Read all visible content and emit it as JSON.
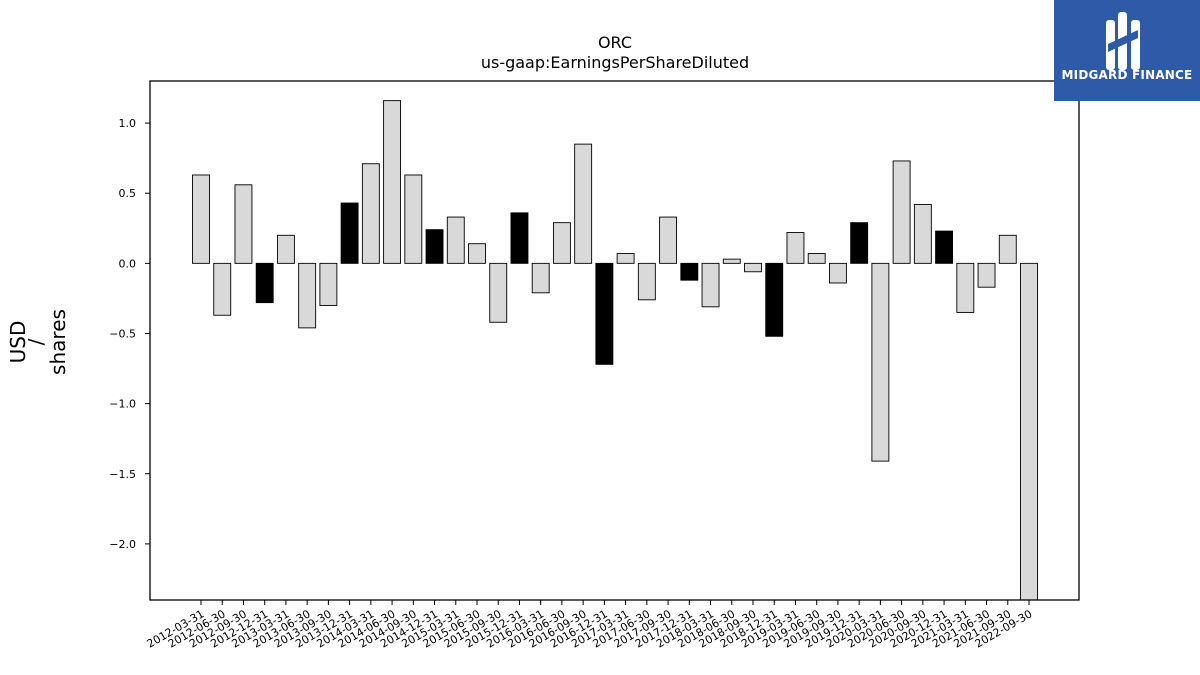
{
  "chart_data": {
    "type": "bar",
    "title": "ORC",
    "subtitle": "us-gaap:EarningsPerShareDiluted",
    "ylabel_lines": [
      "USD",
      "/",
      "shares"
    ],
    "ylim": [
      -2.4,
      1.3
    ],
    "yticks": [
      1.0,
      0.5,
      0.0,
      -0.5,
      -1.0,
      -1.5,
      -2.0
    ],
    "ytick_labels": [
      "1.0",
      "0.5",
      "0.0",
      "−0.5",
      "−1.0",
      "−1.5",
      "−2.0"
    ],
    "categories": [
      "2012-03-31",
      "2012-06-30",
      "2012-09-30",
      "2012-12-31",
      "2013-03-31",
      "2013-06-30",
      "2013-09-30",
      "2013-12-31",
      "2014-03-31",
      "2014-06-30",
      "2014-09-30",
      "2014-12-31",
      "2015-03-31",
      "2015-06-30",
      "2015-09-30",
      "2015-12-31",
      "2016-03-31",
      "2016-06-30",
      "2016-09-30",
      "2016-12-31",
      "2017-03-31",
      "2017-06-30",
      "2017-09-30",
      "2017-12-31",
      "2018-03-31",
      "2018-06-30",
      "2018-09-30",
      "2018-12-31",
      "2019-03-31",
      "2019-06-30",
      "2019-09-30",
      "2019-12-31",
      "2020-03-31",
      "2020-06-30",
      "2020-09-30",
      "2020-12-31",
      "2021-03-31",
      "2021-06-30",
      "2021-09-30",
      "2022-09-30"
    ],
    "values": [
      0.63,
      -0.37,
      0.56,
      -0.28,
      0.2,
      -0.46,
      -0.3,
      0.43,
      0.71,
      1.16,
      0.63,
      0.24,
      0.33,
      0.14,
      -0.42,
      0.36,
      -0.21,
      0.29,
      0.85,
      -0.72,
      0.07,
      -0.26,
      0.33,
      -0.12,
      -0.31,
      0.03,
      -0.06,
      -0.52,
      0.22,
      0.07,
      -0.14,
      0.29,
      -1.41,
      0.73,
      0.42,
      0.23,
      -0.35,
      -0.17,
      0.2,
      -2.4
    ],
    "highlight": [
      false,
      false,
      false,
      true,
      false,
      false,
      false,
      true,
      false,
      false,
      false,
      true,
      false,
      false,
      false,
      true,
      false,
      false,
      false,
      true,
      false,
      false,
      false,
      true,
      false,
      false,
      false,
      true,
      false,
      false,
      false,
      true,
      false,
      false,
      false,
      true,
      false,
      false,
      false,
      false
    ],
    "colors": {
      "normal": "#d9d9d9",
      "highlight": "#000000",
      "edge": "#000000"
    },
    "grid": false,
    "legend": "none"
  },
  "logo": {
    "text": "MIDGARD FINANCE",
    "background": "#2f5aa8"
  }
}
